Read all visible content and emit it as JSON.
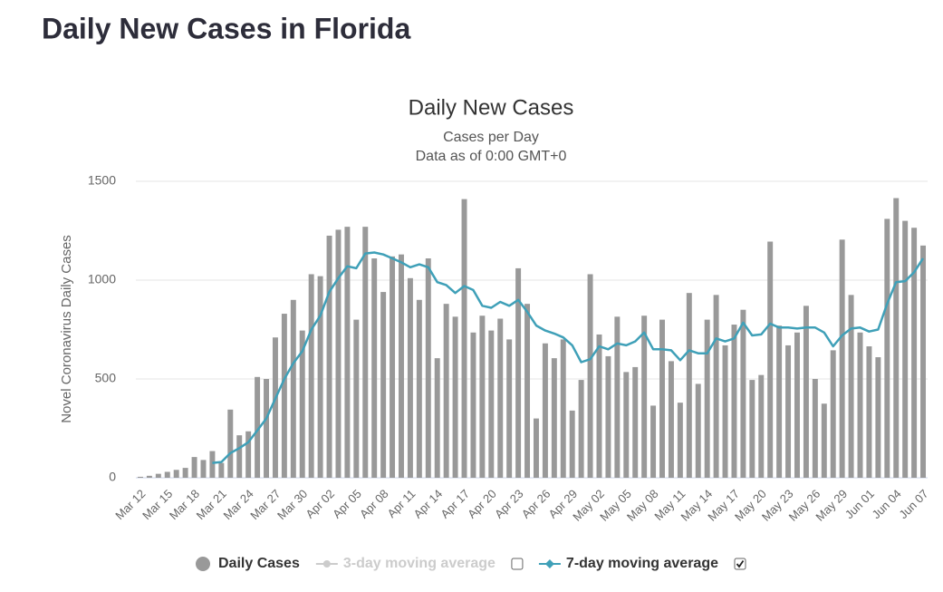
{
  "page_title": "Daily New Cases in Florida",
  "chart_data": {
    "type": "bar",
    "title": "Daily New Cases",
    "subtitle": [
      "Cases per Day",
      "Data as of 0:00 GMT+0"
    ],
    "y_label": "Novel Coronavirus Daily Cases",
    "categories": [
      "Mar 12",
      null,
      null,
      "Mar 15",
      null,
      null,
      "Mar 18",
      null,
      null,
      "Mar 21",
      null,
      null,
      "Mar 24",
      null,
      null,
      "Mar 27",
      null,
      null,
      "Mar 30",
      null,
      null,
      "Apr 02",
      null,
      null,
      "Apr 05",
      null,
      null,
      "Apr 08",
      null,
      null,
      "Apr 11",
      null,
      null,
      "Apr 14",
      null,
      null,
      "Apr 17",
      null,
      null,
      "Apr 20",
      null,
      null,
      "Apr 23",
      null,
      null,
      "Apr 26",
      null,
      null,
      "Apr 29",
      null,
      null,
      "May 02",
      null,
      null,
      "May 05",
      null,
      null,
      "May 08",
      null,
      null,
      "May 11",
      null,
      null,
      "May 14",
      null,
      null,
      "May 17",
      null,
      null,
      "May 20",
      null,
      null,
      "May 23",
      null,
      null,
      "May 26",
      null,
      null,
      "May 29",
      null,
      null,
      "Jun 01",
      null,
      null,
      "Jun 04",
      null,
      null,
      "Jun 07"
    ],
    "ylim": [
      0,
      1500
    ],
    "yticks": [
      0,
      500,
      1000,
      1500
    ],
    "grid": true,
    "series": [
      {
        "name": "Daily Cases",
        "type": "bar",
        "color": "#999999",
        "visible": true,
        "values": [
          5,
          10,
          20,
          30,
          40,
          50,
          105,
          90,
          135,
          75,
          345,
          215,
          235,
          510,
          500,
          710,
          830,
          900,
          745,
          1030,
          1020,
          1225,
          1255,
          1270,
          800,
          1270,
          1110,
          940,
          1120,
          1130,
          1010,
          900,
          1110,
          605,
          880,
          815,
          1410,
          735,
          820,
          745,
          805,
          700,
          1060,
          880,
          300,
          680,
          605,
          700,
          340,
          495,
          1030,
          725,
          615,
          815,
          535,
          560,
          820,
          365,
          800,
          590,
          380,
          935,
          475,
          800,
          925,
          670,
          775,
          850,
          495,
          520,
          1195,
          770,
          670,
          735,
          870,
          500,
          375,
          645,
          1205,
          925,
          735,
          665,
          610,
          1310,
          1415,
          1300,
          1265,
          1175
        ]
      },
      {
        "name": "3-day moving average",
        "type": "line",
        "color": "#cccccc",
        "visible": false,
        "checked": false
      },
      {
        "name": "7-day moving average",
        "type": "line",
        "color": "#3fa0b8",
        "visible": true,
        "checked": true,
        "values": [
          null,
          null,
          null,
          null,
          null,
          null,
          null,
          null,
          75,
          80,
          125,
          150,
          180,
          240,
          300,
          400,
          500,
          580,
          640,
          750,
          820,
          940,
          1010,
          1070,
          1060,
          1135,
          1140,
          1130,
          1110,
          1090,
          1065,
          1080,
          1065,
          990,
          975,
          935,
          970,
          950,
          870,
          860,
          890,
          870,
          900,
          840,
          770,
          745,
          730,
          710,
          670,
          585,
          600,
          665,
          650,
          680,
          670,
          690,
          735,
          650,
          650,
          645,
          595,
          645,
          630,
          630,
          705,
          690,
          705,
          785,
          720,
          725,
          780,
          760,
          760,
          755,
          760,
          760,
          735,
          665,
          720,
          755,
          760,
          740,
          750,
          880,
          990,
          995,
          1040,
          1110
        ]
      }
    ]
  }
}
